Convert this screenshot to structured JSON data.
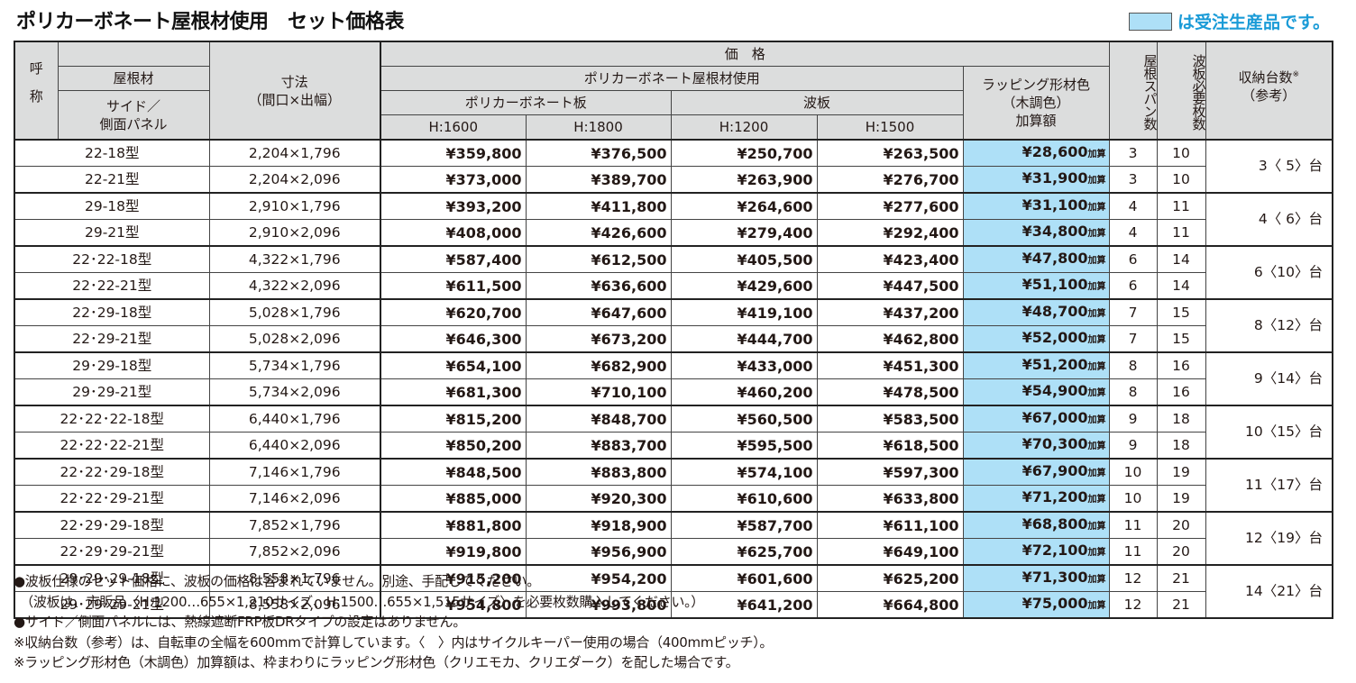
{
  "page": {
    "title": "ポリカーボネート屋根材使用　セット価格表",
    "legend": {
      "swatch_color": "#aee0f7",
      "text": "は受注生産品です。",
      "text_color": "#1a9bd7"
    }
  },
  "table": {
    "headers": {
      "name_vertical": "呼称",
      "name_char1": "呼",
      "name_char2": "称",
      "roof_material": "屋根材",
      "side_panel": "サイド／側面パネル",
      "size": "寸法",
      "size_sub": "（間口×出幅）",
      "price": "価　格",
      "polycarbonate_roof": "ポリカーボネート屋根材使用",
      "polycarbonate_board": "ポリカーボネート板",
      "corrugated": "波板",
      "h1600": "H:1600",
      "h1800": "H:1800",
      "h1200": "H:1200",
      "h1500": "H:1500",
      "wrapping_line1": "ラッピング形材色",
      "wrapping_line2": "（木調色）",
      "wrapping_line3": "加算額",
      "roof_span": "屋根スパン数",
      "corrugated_sheets": "波板必要枚数",
      "capacity": "収納台数",
      "capacity_mark": "※",
      "capacity_sub": "（参考）"
    },
    "wrap_suffix": "加算",
    "rows": [
      {
        "name": "22-18型",
        "size": "2,204×1,796",
        "h1600": "¥359,800",
        "h1800": "¥376,500",
        "h1200": "¥250,700",
        "h1500": "¥263,500",
        "wrap": "¥28,600",
        "span": "3",
        "sheets": "10",
        "capacity": "3〈 5〉台"
      },
      {
        "name": "22-21型",
        "size": "2,204×2,096",
        "h1600": "¥373,000",
        "h1800": "¥389,700",
        "h1200": "¥263,900",
        "h1500": "¥276,700",
        "wrap": "¥31,900",
        "span": "3",
        "sheets": "10"
      },
      {
        "name": "29-18型",
        "size": "2,910×1,796",
        "h1600": "¥393,200",
        "h1800": "¥411,800",
        "h1200": "¥264,600",
        "h1500": "¥277,600",
        "wrap": "¥31,100",
        "span": "4",
        "sheets": "11",
        "capacity": "4〈 6〉台"
      },
      {
        "name": "29-21型",
        "size": "2,910×2,096",
        "h1600": "¥408,000",
        "h1800": "¥426,600",
        "h1200": "¥279,400",
        "h1500": "¥292,400",
        "wrap": "¥34,800",
        "span": "4",
        "sheets": "11"
      },
      {
        "name": "22･22-18型",
        "size": "4,322×1,796",
        "h1600": "¥587,400",
        "h1800": "¥612,500",
        "h1200": "¥405,500",
        "h1500": "¥423,400",
        "wrap": "¥47,800",
        "span": "6",
        "sheets": "14",
        "capacity": "6〈10〉台"
      },
      {
        "name": "22･22-21型",
        "size": "4,322×2,096",
        "h1600": "¥611,500",
        "h1800": "¥636,600",
        "h1200": "¥429,600",
        "h1500": "¥447,500",
        "wrap": "¥51,100",
        "span": "6",
        "sheets": "14"
      },
      {
        "name": "22･29-18型",
        "size": "5,028×1,796",
        "h1600": "¥620,700",
        "h1800": "¥647,600",
        "h1200": "¥419,100",
        "h1500": "¥437,200",
        "wrap": "¥48,700",
        "span": "7",
        "sheets": "15",
        "capacity": "8〈12〉台"
      },
      {
        "name": "22･29-21型",
        "size": "5,028×2,096",
        "h1600": "¥646,300",
        "h1800": "¥673,200",
        "h1200": "¥444,700",
        "h1500": "¥462,800",
        "wrap": "¥52,000",
        "span": "7",
        "sheets": "15"
      },
      {
        "name": "29･29-18型",
        "size": "5,734×1,796",
        "h1600": "¥654,100",
        "h1800": "¥682,900",
        "h1200": "¥433,000",
        "h1500": "¥451,300",
        "wrap": "¥51,200",
        "span": "8",
        "sheets": "16",
        "capacity": "9〈14〉台"
      },
      {
        "name": "29･29-21型",
        "size": "5,734×2,096",
        "h1600": "¥681,300",
        "h1800": "¥710,100",
        "h1200": "¥460,200",
        "h1500": "¥478,500",
        "wrap": "¥54,900",
        "span": "8",
        "sheets": "16"
      },
      {
        "name": "22･22･22-18型",
        "size": "6,440×1,796",
        "h1600": "¥815,200",
        "h1800": "¥848,700",
        "h1200": "¥560,500",
        "h1500": "¥583,500",
        "wrap": "¥67,000",
        "span": "9",
        "sheets": "18",
        "capacity": "10〈15〉台"
      },
      {
        "name": "22･22･22-21型",
        "size": "6,440×2,096",
        "h1600": "¥850,200",
        "h1800": "¥883,700",
        "h1200": "¥595,500",
        "h1500": "¥618,500",
        "wrap": "¥70,300",
        "span": "9",
        "sheets": "18"
      },
      {
        "name": "22･22･29-18型",
        "size": "7,146×1,796",
        "h1600": "¥848,500",
        "h1800": "¥883,800",
        "h1200": "¥574,100",
        "h1500": "¥597,300",
        "wrap": "¥67,900",
        "span": "10",
        "sheets": "19",
        "capacity": "11〈17〉台"
      },
      {
        "name": "22･22･29-21型",
        "size": "7,146×2,096",
        "h1600": "¥885,000",
        "h1800": "¥920,300",
        "h1200": "¥610,600",
        "h1500": "¥633,800",
        "wrap": "¥71,200",
        "span": "10",
        "sheets": "19"
      },
      {
        "name": "22･29･29-18型",
        "size": "7,852×1,796",
        "h1600": "¥881,800",
        "h1800": "¥918,900",
        "h1200": "¥587,700",
        "h1500": "¥611,100",
        "wrap": "¥68,800",
        "span": "11",
        "sheets": "20",
        "capacity": "12〈19〉台"
      },
      {
        "name": "22･29･29-21型",
        "size": "7,852×2,096",
        "h1600": "¥919,800",
        "h1800": "¥956,900",
        "h1200": "¥625,700",
        "h1500": "¥649,100",
        "wrap": "¥72,100",
        "span": "11",
        "sheets": "20"
      },
      {
        "name": "29･29･29-18型",
        "size": "8,558×1,796",
        "h1600": "¥915,200",
        "h1800": "¥954,200",
        "h1200": "¥601,600",
        "h1500": "¥625,200",
        "wrap": "¥71,300",
        "span": "12",
        "sheets": "21",
        "capacity": "14〈21〉台"
      },
      {
        "name": "29･29･29-21型",
        "size": "8,558×2,096",
        "h1600": "¥954,800",
        "h1800": "¥993,800",
        "h1200": "¥641,200",
        "h1500": "¥664,800",
        "wrap": "¥75,000",
        "span": "12",
        "sheets": "21"
      }
    ]
  },
  "notes": [
    "●波板仕様のセット価格に、波板の価格は含まれていません。別途、手配してください。",
    "　（波板は、市販品〈H:1200…655×1,210サイズ、H:1500…655×1,515サイズ〉を必要枚数購入してください。）",
    "●サイド／側面パネルには、熱線遮断FRP板DRタイプの設定はありません。",
    "※収納台数（参考）は、自転車の全幅を600mmで計算しています。〈　〉内はサイクルキーパー使用の場合（400mmピッチ）。",
    "※ラッピング形材色（木調色）加算額は、枠まわりにラッピング形材色（クリエモカ、クリエダーク）を配した場合です。"
  ]
}
